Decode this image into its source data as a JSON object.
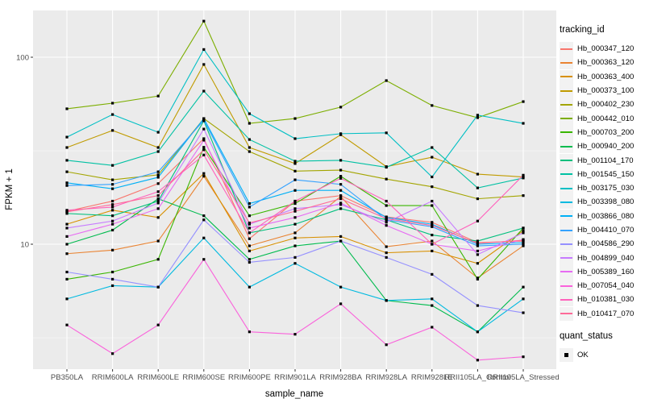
{
  "chart_data": {
    "type": "line",
    "title": "",
    "xlabel": "sample_name",
    "ylabel": "FPKM + 1",
    "y_scale": "log10",
    "ylim": [
      2.2,
      176
    ],
    "y_major_ticks": [
      100,
      10
    ],
    "y_minor_ticks": [
      31.6,
      3.16
    ],
    "grid": "on",
    "legend_position": "right",
    "point_marker": "black-square",
    "panel_color": "#ebebeb",
    "gridline_color": "#ffffff",
    "categories": [
      "PB350LA",
      "RRIM600LA",
      "RRIM600LE",
      "RRIM600SE",
      "RRIM600PE",
      "RRIM901LA",
      "RRIM928BA",
      "RRIM928LA",
      "RRIM928LE",
      "RRII105LA_Control",
      "RRII105LA_Stressed"
    ],
    "color_legend_title": "tracking_id",
    "shape_legend_title": "quant_status",
    "shape_legend_items": [
      {
        "label": "OK"
      }
    ],
    "series": [
      {
        "name": "Hb_000347_120",
        "color": "#F8766D",
        "values": [
          15.0,
          17.0,
          21.1,
          36.7,
          10.7,
          17.0,
          18.2,
          14.0,
          13.1,
          10.2,
          10.4
        ]
      },
      {
        "name": "Hb_000363_120",
        "color": "#EA8331",
        "values": [
          8.9,
          9.3,
          10.4,
          23.1,
          9.8,
          11.5,
          18.0,
          9.7,
          10.4,
          6.6,
          9.8
        ]
      },
      {
        "name": "Hb_000363_400",
        "color": "#D89000",
        "values": [
          12.8,
          15.2,
          13.9,
          23.9,
          9.2,
          10.8,
          11.0,
          9.0,
          9.2,
          7.9,
          11.8
        ]
      },
      {
        "name": "Hb_000373_100",
        "color": "#C09B00",
        "values": [
          32.9,
          40.6,
          32.9,
          91.5,
          32.9,
          27.0,
          38.5,
          26.0,
          29.2,
          23.7,
          22.9
        ]
      },
      {
        "name": "Hb_000402_230",
        "color": "#A3A500",
        "values": [
          24.4,
          22.1,
          23.5,
          47.0,
          31.3,
          24.6,
          24.9,
          22.3,
          20.3,
          17.5,
          18.2
        ]
      },
      {
        "name": "Hb_000442_010",
        "color": "#7CAE00",
        "values": [
          53.0,
          56.8,
          62.0,
          156.0,
          44.3,
          47.0,
          54.1,
          75.0,
          55.2,
          47.5,
          57.9
        ]
      },
      {
        "name": "Hb_000703_200",
        "color": "#39B600",
        "values": [
          6.5,
          7.1,
          8.3,
          33.0,
          14.2,
          16.5,
          23.1,
          16.1,
          16.1,
          6.5,
          12.2
        ]
      },
      {
        "name": "Hb_000940_200",
        "color": "#00BB4E",
        "values": [
          10.0,
          11.9,
          17.5,
          14.2,
          8.3,
          9.8,
          10.4,
          5.0,
          4.7,
          3.4,
          5.9
        ]
      },
      {
        "name": "Hb_001104_170",
        "color": "#00BF7D",
        "values": [
          14.6,
          14.2,
          17.0,
          45.7,
          11.5,
          12.8,
          15.5,
          13.5,
          11.2,
          10.4,
          12.2
        ]
      },
      {
        "name": "Hb_001545_150",
        "color": "#00C1A3",
        "values": [
          28.1,
          26.4,
          31.3,
          65.9,
          36.3,
          27.8,
          28.1,
          25.8,
          32.9,
          20.0,
          22.6
        ]
      },
      {
        "name": "Hb_003175_030",
        "color": "#00BFC4",
        "values": [
          37.4,
          49.4,
          39.7,
          110.0,
          49.9,
          36.7,
          39.0,
          39.4,
          22.9,
          49.0,
          44.3
        ]
      },
      {
        "name": "Hb_003398_080",
        "color": "#00BAE0",
        "values": [
          5.1,
          6.0,
          5.9,
          10.8,
          5.9,
          7.9,
          5.9,
          5.0,
          5.1,
          3.4,
          5.1
        ]
      },
      {
        "name": "Hb_003866_080",
        "color": "#00B0F6",
        "values": [
          21.3,
          19.8,
          22.8,
          47.0,
          16.5,
          19.4,
          19.4,
          13.9,
          12.8,
          10.0,
          10.2
        ]
      },
      {
        "name": "Hb_004410_070",
        "color": "#35A2FF",
        "values": [
          20.6,
          20.9,
          24.4,
          46.0,
          15.8,
          22.1,
          20.9,
          13.5,
          12.4,
          9.8,
          10.0
        ]
      },
      {
        "name": "Hb_004586_290",
        "color": "#9590FF",
        "values": [
          7.1,
          6.5,
          5.9,
          13.5,
          8.0,
          8.5,
          10.4,
          8.5,
          6.9,
          4.7,
          4.3
        ]
      },
      {
        "name": "Hb_004899_040",
        "color": "#C77CFF",
        "values": [
          12.2,
          13.3,
          16.6,
          41.3,
          12.8,
          15.5,
          16.3,
          13.1,
          17.0,
          8.8,
          11.5
        ]
      },
      {
        "name": "Hb_005389_160",
        "color": "#E76BF3",
        "values": [
          11.0,
          12.8,
          15.5,
          36.0,
          12.2,
          13.9,
          16.6,
          12.6,
          10.0,
          9.2,
          10.6
        ]
      },
      {
        "name": "Hb_007054_040",
        "color": "#FA62DB",
        "values": [
          3.7,
          2.6,
          3.7,
          8.3,
          3.4,
          3.3,
          4.8,
          2.9,
          3.6,
          2.4,
          2.5
        ]
      },
      {
        "name": "Hb_010381_030",
        "color": "#FF62BC",
        "values": [
          15.2,
          15.8,
          19.1,
          30.0,
          11.5,
          17.0,
          22.5,
          17.0,
          10.0,
          13.3,
          23.4
        ]
      },
      {
        "name": "Hb_010417_070",
        "color": "#FF6A98",
        "values": [
          14.9,
          16.3,
          18.2,
          32.0,
          13.0,
          15.0,
          17.5,
          13.7,
          12.6,
          10.1,
          10.5
        ]
      }
    ]
  }
}
